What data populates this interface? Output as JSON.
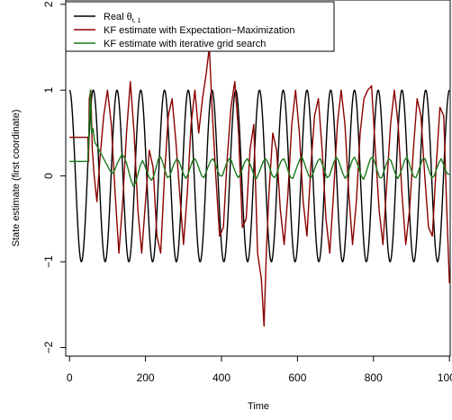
{
  "chart_data": {
    "type": "line",
    "xlabel": "Time",
    "ylabel": "State estimate (first coordinate)",
    "xlim": [
      -10,
      1002
    ],
    "ylim": [
      -2.1,
      2.05
    ],
    "xticks": [
      0,
      200,
      400,
      600,
      800,
      1000
    ],
    "xtick_labels": [
      "0",
      "200",
      "400",
      "600",
      "800",
      "1000"
    ],
    "yticks": [
      -2,
      -1,
      0,
      1,
      2
    ],
    "ytick_labels": [
      "−2",
      "−1",
      "0",
      "1",
      "2"
    ],
    "legend_position": "top-left",
    "series": [
      {
        "name": "Real θ",
        "name_subscript": "t, 1",
        "color": "#000000",
        "period": 62.5,
        "amplitude": 1,
        "x_range": [
          0,
          1000
        ]
      },
      {
        "name": "KF estimate with Expectation−Maximization",
        "color": "#8b0000",
        "points": [
          [
            0,
            0.45
          ],
          [
            48,
            0.45
          ],
          [
            50,
            0.17
          ],
          [
            52,
            0.9
          ],
          [
            56,
            1.0
          ],
          [
            60,
            0.3
          ],
          [
            65,
            0.0
          ],
          [
            72,
            -0.3
          ],
          [
            80,
            0.2
          ],
          [
            90,
            0.7
          ],
          [
            100,
            1.0
          ],
          [
            110,
            0.6
          ],
          [
            120,
            -0.2
          ],
          [
            130,
            -0.9
          ],
          [
            140,
            -0.3
          ],
          [
            150,
            0.5
          ],
          [
            160,
            1.1
          ],
          [
            170,
            0.5
          ],
          [
            180,
            -0.4
          ],
          [
            190,
            -0.9
          ],
          [
            200,
            -0.3
          ],
          [
            210,
            0.3
          ],
          [
            220,
            0.1
          ],
          [
            230,
            -0.7
          ],
          [
            240,
            -0.9
          ],
          [
            250,
            0.0
          ],
          [
            260,
            0.7
          ],
          [
            270,
            0.9
          ],
          [
            280,
            0.4
          ],
          [
            290,
            -0.2
          ],
          [
            300,
            -0.8
          ],
          [
            310,
            -0.2
          ],
          [
            320,
            0.6
          ],
          [
            330,
            1.0
          ],
          [
            340,
            0.5
          ],
          [
            350,
            0.9
          ],
          [
            360,
            1.2
          ],
          [
            368,
            1.5
          ],
          [
            375,
            0.8
          ],
          [
            385,
            0.0
          ],
          [
            395,
            -0.7
          ],
          [
            405,
            -0.6
          ],
          [
            415,
            0.2
          ],
          [
            425,
            0.8
          ],
          [
            435,
            1.1
          ],
          [
            445,
            0.5
          ],
          [
            455,
            -0.6
          ],
          [
            465,
            -0.5
          ],
          [
            475,
            0.3
          ],
          [
            485,
            0.6
          ],
          [
            495,
            -0.9
          ],
          [
            505,
            -1.2
          ],
          [
            512,
            -1.75
          ],
          [
            518,
            -0.9
          ],
          [
            525,
            -0.2
          ],
          [
            535,
            0.5
          ],
          [
            545,
            0.3
          ],
          [
            555,
            -0.4
          ],
          [
            565,
            -0.8
          ],
          [
            575,
            -0.2
          ],
          [
            585,
            0.6
          ],
          [
            595,
            1.0
          ],
          [
            605,
            0.5
          ],
          [
            615,
            -0.3
          ],
          [
            625,
            -0.7
          ],
          [
            635,
            0.1
          ],
          [
            645,
            0.7
          ],
          [
            655,
            0.9
          ],
          [
            665,
            0.3
          ],
          [
            675,
            -0.5
          ],
          [
            685,
            -0.9
          ],
          [
            695,
            -0.2
          ],
          [
            705,
            0.6
          ],
          [
            715,
            1.0
          ],
          [
            725,
            0.6
          ],
          [
            735,
            -0.2
          ],
          [
            745,
            -0.8
          ],
          [
            755,
            -0.3
          ],
          [
            765,
            0.5
          ],
          [
            775,
            0.9
          ],
          [
            785,
            1.0
          ],
          [
            795,
            1.05
          ],
          [
            805,
            0.3
          ],
          [
            815,
            -0.4
          ],
          [
            825,
            -0.8
          ],
          [
            835,
            -0.1
          ],
          [
            845,
            0.6
          ],
          [
            855,
            1.0
          ],
          [
            865,
            0.6
          ],
          [
            875,
            -0.2
          ],
          [
            885,
            -0.8
          ],
          [
            895,
            -0.4
          ],
          [
            905,
            0.3
          ],
          [
            915,
            0.9
          ],
          [
            925,
            0.7
          ],
          [
            935,
            0.0
          ],
          [
            945,
            -0.6
          ],
          [
            955,
            -0.7
          ],
          [
            965,
            0.1
          ],
          [
            975,
            0.8
          ],
          [
            985,
            0.7
          ],
          [
            993,
            -0.4
          ],
          [
            1000,
            -1.25
          ]
        ]
      },
      {
        "name": "KF estimate with iterative grid search",
        "color": "#1a7a1a",
        "points": [
          [
            0,
            0.17
          ],
          [
            48,
            0.17
          ],
          [
            50,
            0.4
          ],
          [
            55,
            1.0
          ],
          [
            58,
            0.5
          ],
          [
            62,
            0.55
          ],
          [
            66,
            0.4
          ],
          [
            72,
            0.35
          ],
          [
            78,
            0.3
          ],
          [
            84,
            0.25
          ],
          [
            90,
            0.2
          ],
          [
            96,
            0.15
          ],
          [
            102,
            0.1
          ],
          [
            108,
            0.05
          ],
          [
            114,
            0.03
          ],
          [
            120,
            0.08
          ],
          [
            126,
            0.15
          ],
          [
            132,
            0.2
          ],
          [
            138,
            0.25
          ],
          [
            144,
            0.22
          ],
          [
            150,
            0.15
          ],
          [
            156,
            0.05
          ],
          [
            162,
            -0.05
          ],
          [
            168,
            -0.12
          ],
          [
            174,
            -0.08
          ],
          [
            180,
            0.02
          ],
          [
            186,
            0.12
          ],
          [
            192,
            0.18
          ],
          [
            198,
            0.12
          ],
          [
            204,
            0.05
          ],
          [
            210,
            -0.02
          ],
          [
            216,
            -0.05
          ],
          [
            222,
            0.0
          ],
          [
            228,
            0.1
          ],
          [
            234,
            0.2
          ],
          [
            240,
            0.22
          ],
          [
            246,
            0.15
          ],
          [
            252,
            0.05
          ],
          [
            258,
            -0.02
          ],
          [
            264,
            0.0
          ],
          [
            270,
            0.08
          ],
          [
            276,
            0.15
          ],
          [
            282,
            0.2
          ],
          [
            288,
            0.17
          ],
          [
            294,
            0.1
          ],
          [
            300,
            0.02
          ],
          [
            306,
            -0.03
          ],
          [
            312,
            0.02
          ],
          [
            318,
            0.1
          ],
          [
            324,
            0.18
          ],
          [
            330,
            0.2
          ],
          [
            336,
            0.15
          ],
          [
            342,
            0.07
          ],
          [
            348,
            0.0
          ],
          [
            354,
            -0.02
          ],
          [
            360,
            0.05
          ],
          [
            366,
            0.12
          ],
          [
            372,
            0.18
          ],
          [
            378,
            0.2
          ],
          [
            384,
            0.14
          ],
          [
            390,
            0.06
          ],
          [
            396,
            0.0
          ],
          [
            402,
            0.0
          ],
          [
            408,
            0.08
          ],
          [
            414,
            0.15
          ],
          [
            420,
            0.2
          ],
          [
            426,
            0.18
          ],
          [
            432,
            0.1
          ],
          [
            438,
            0.03
          ],
          [
            444,
            -0.02
          ],
          [
            450,
            0.02
          ],
          [
            456,
            0.1
          ],
          [
            462,
            0.17
          ],
          [
            468,
            0.2
          ],
          [
            474,
            0.15
          ],
          [
            480,
            0.08
          ],
          [
            486,
            0.0
          ],
          [
            492,
            -0.03
          ],
          [
            498,
            0.03
          ],
          [
            504,
            0.1
          ],
          [
            510,
            0.17
          ],
          [
            516,
            0.2
          ],
          [
            522,
            0.16
          ],
          [
            528,
            0.08
          ],
          [
            534,
            0.0
          ],
          [
            540,
            -0.02
          ],
          [
            546,
            0.03
          ],
          [
            552,
            0.12
          ],
          [
            558,
            0.18
          ],
          [
            564,
            0.2
          ],
          [
            570,
            0.14
          ],
          [
            576,
            0.05
          ],
          [
            582,
            -0.02
          ],
          [
            588,
            -0.03
          ],
          [
            594,
            0.05
          ],
          [
            600,
            0.12
          ],
          [
            606,
            0.19
          ],
          [
            612,
            0.22
          ],
          [
            618,
            0.15
          ],
          [
            624,
            0.07
          ],
          [
            630,
            0.0
          ],
          [
            636,
            -0.02
          ],
          [
            642,
            0.04
          ],
          [
            648,
            0.12
          ],
          [
            654,
            0.18
          ],
          [
            660,
            0.2
          ],
          [
            666,
            0.13
          ],
          [
            672,
            0.05
          ],
          [
            678,
            -0.02
          ],
          [
            684,
            0.0
          ],
          [
            690,
            0.08
          ],
          [
            696,
            0.16
          ],
          [
            702,
            0.22
          ],
          [
            708,
            0.18
          ],
          [
            714,
            0.1
          ],
          [
            720,
            0.02
          ],
          [
            726,
            -0.03
          ],
          [
            732,
            0.02
          ],
          [
            738,
            0.1
          ],
          [
            744,
            0.18
          ],
          [
            750,
            0.22
          ],
          [
            756,
            0.16
          ],
          [
            762,
            0.08
          ],
          [
            768,
            0.0
          ],
          [
            774,
            -0.04
          ],
          [
            780,
            0.03
          ],
          [
            786,
            0.12
          ],
          [
            792,
            0.2
          ],
          [
            798,
            0.22
          ],
          [
            804,
            0.15
          ],
          [
            810,
            0.06
          ],
          [
            816,
            -0.02
          ],
          [
            822,
            -0.02
          ],
          [
            828,
            0.06
          ],
          [
            834,
            0.14
          ],
          [
            840,
            0.2
          ],
          [
            846,
            0.18
          ],
          [
            852,
            0.1
          ],
          [
            858,
            0.02
          ],
          [
            864,
            -0.03
          ],
          [
            870,
            0.02
          ],
          [
            876,
            0.1
          ],
          [
            882,
            0.18
          ],
          [
            888,
            0.22
          ],
          [
            894,
            0.15
          ],
          [
            900,
            0.06
          ],
          [
            906,
            -0.01
          ],
          [
            912,
            -0.02
          ],
          [
            918,
            0.05
          ],
          [
            924,
            0.13
          ],
          [
            930,
            0.2
          ],
          [
            936,
            0.2
          ],
          [
            942,
            0.12
          ],
          [
            948,
            0.04
          ],
          [
            954,
            -0.02
          ],
          [
            960,
            0.0
          ],
          [
            966,
            0.08
          ],
          [
            972,
            0.15
          ],
          [
            978,
            0.2
          ],
          [
            984,
            0.14
          ],
          [
            990,
            0.06
          ],
          [
            996,
            0.02
          ],
          [
            1000,
            0.02
          ]
        ]
      }
    ]
  }
}
